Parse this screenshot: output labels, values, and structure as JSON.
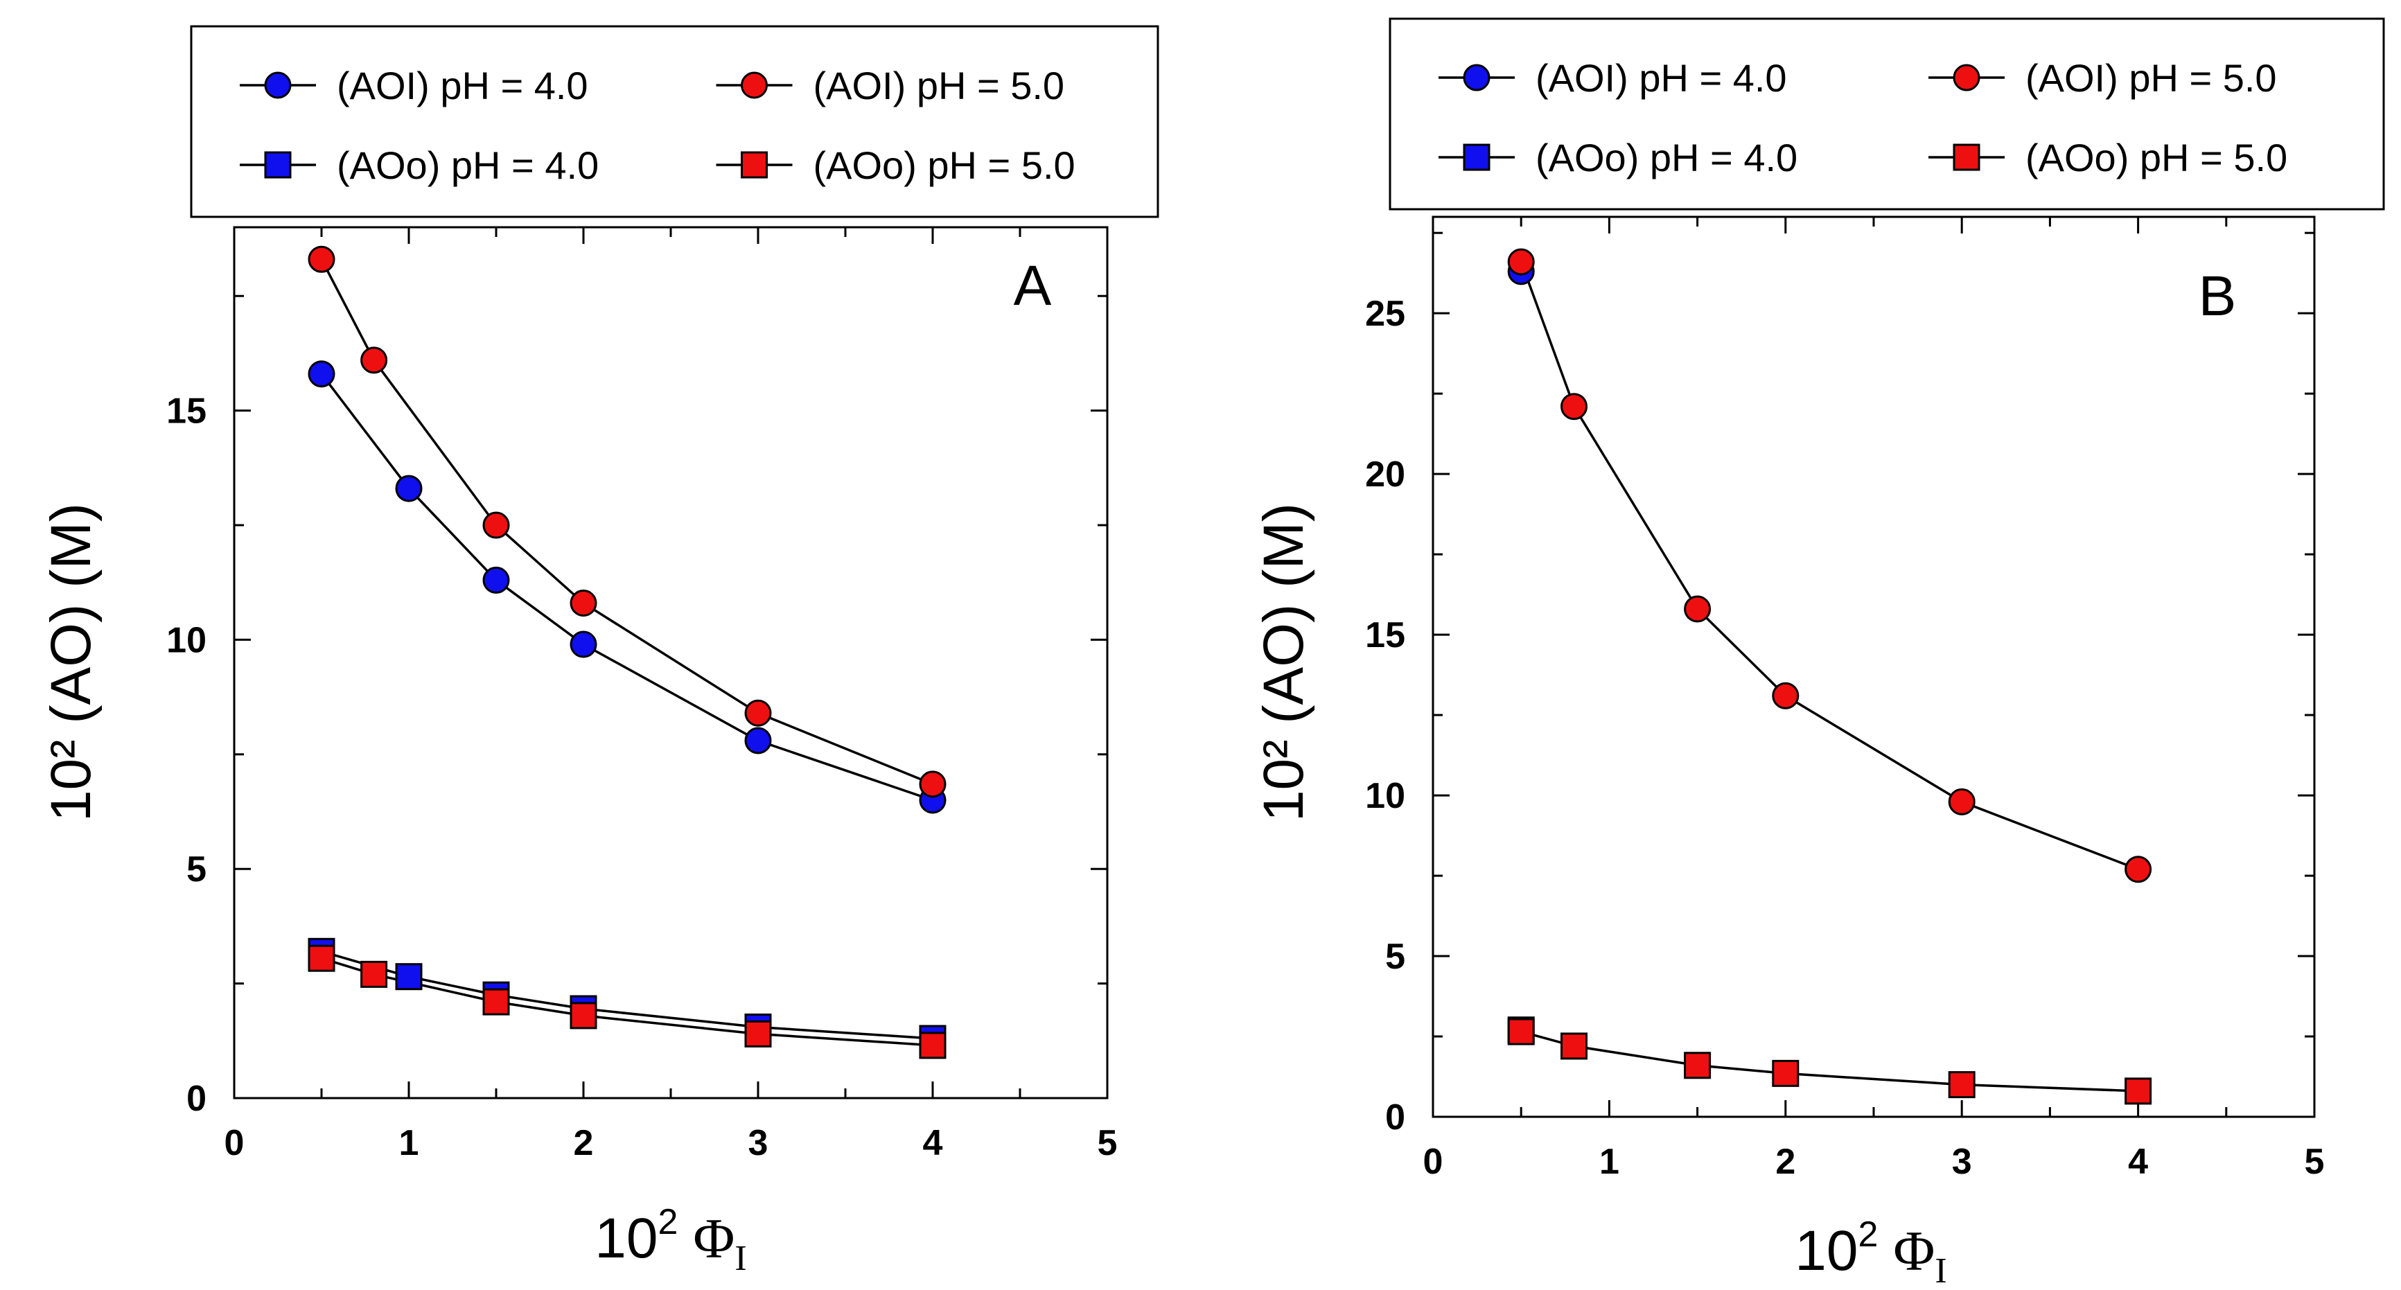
{
  "colors": {
    "blue": "#1010ee",
    "red": "#ee1010",
    "line": "#000000",
    "frame": "#000000",
    "background": "#ffffff"
  },
  "chart_data": [
    {
      "type": "line",
      "panel_label": "A",
      "xlabel_base": "10",
      "xlabel_exp": "2",
      "xlabel_symbol": "Φ",
      "xlabel_sub": "I",
      "ylabel": "10² (AO) (M)",
      "xlim": [
        0,
        5
      ],
      "ylim": [
        0,
        19
      ],
      "xticks": [
        0,
        1,
        2,
        3,
        4,
        5
      ],
      "yticks": [
        0,
        5,
        10,
        15
      ],
      "minor_x_step": 0.5,
      "minor_y_step": 2.5,
      "legend": {
        "placement": "top, above plot",
        "entries": [
          {
            "label": "(AOI)  pH = 4.0",
            "color": "blue",
            "marker": "circle"
          },
          {
            "label": "(AOI)  pH = 5.0",
            "color": "red",
            "marker": "circle"
          },
          {
            "label": "(AOo) pH = 4.0",
            "color": "blue",
            "marker": "square"
          },
          {
            "label": "(AOo) pH = 5.0",
            "color": "red",
            "marker": "square"
          }
        ]
      },
      "series": [
        {
          "name": "(AOI)  pH = 4.0",
          "color": "blue",
          "marker": "circle",
          "x": [
            0.5,
            1.0,
            1.5,
            2.0,
            3.0,
            4.0
          ],
          "y": [
            15.8,
            13.3,
            11.3,
            9.9,
            7.8,
            6.5
          ]
        },
        {
          "name": "(AOI)  pH = 5.0",
          "color": "red",
          "marker": "circle",
          "x": [
            0.5,
            0.8,
            1.5,
            2.0,
            3.0,
            4.0
          ],
          "y": [
            18.3,
            16.1,
            12.5,
            10.8,
            8.4,
            6.85
          ]
        },
        {
          "name": "(AOo) pH = 4.0",
          "color": "blue",
          "marker": "square",
          "x": [
            0.5,
            1.0,
            1.5,
            2.0,
            3.0,
            4.0
          ],
          "y": [
            3.2,
            2.65,
            2.25,
            1.95,
            1.55,
            1.3
          ]
        },
        {
          "name": "(AOo) pH = 5.0",
          "color": "red",
          "marker": "square",
          "x": [
            0.5,
            0.8,
            1.5,
            2.0,
            3.0,
            4.0
          ],
          "y": [
            3.05,
            2.7,
            2.1,
            1.8,
            1.4,
            1.15
          ]
        }
      ]
    },
    {
      "type": "line",
      "panel_label": "B",
      "xlabel_base": "10",
      "xlabel_exp": "2",
      "xlabel_symbol": "Φ",
      "xlabel_sub": "I",
      "ylabel": "10² (AO) (M)",
      "xlim": [
        0,
        5
      ],
      "ylim": [
        0,
        28
      ],
      "xticks": [
        0,
        1,
        2,
        3,
        4,
        5
      ],
      "yticks": [
        0,
        5,
        10,
        15,
        20,
        25
      ],
      "minor_x_step": 0.5,
      "minor_y_step": 2.5,
      "legend": {
        "placement": "top, above plot",
        "entries": [
          {
            "label": "(AOI)  pH = 4.0",
            "color": "blue",
            "marker": "circle"
          },
          {
            "label": "(AOI)  pH = 5.0",
            "color": "red",
            "marker": "circle"
          },
          {
            "label": "(AOo) pH = 4.0",
            "color": "blue",
            "marker": "square"
          },
          {
            "label": "(AOo) pH = 5.0",
            "color": "red",
            "marker": "square"
          }
        ]
      },
      "series": [
        {
          "name": "(AOI)  pH = 4.0",
          "color": "blue",
          "marker": "circle",
          "x": [
            0.5
          ],
          "y": [
            26.3
          ]
        },
        {
          "name": "(AOI)  pH = 5.0",
          "color": "red",
          "marker": "circle",
          "x": [
            0.5,
            0.8,
            1.5,
            2.0,
            3.0,
            4.0
          ],
          "y": [
            26.6,
            22.1,
            15.8,
            13.1,
            9.8,
            7.7
          ]
        },
        {
          "name": "(AOo) pH = 4.0",
          "color": "blue",
          "marker": "square",
          "x": [
            0.5
          ],
          "y": [
            2.7
          ]
        },
        {
          "name": "(AOo) pH = 5.0",
          "color": "red",
          "marker": "square",
          "x": [
            0.5,
            0.8,
            1.5,
            2.0,
            3.0,
            4.0
          ],
          "y": [
            2.65,
            2.2,
            1.6,
            1.35,
            1.0,
            0.8
          ]
        }
      ]
    }
  ]
}
